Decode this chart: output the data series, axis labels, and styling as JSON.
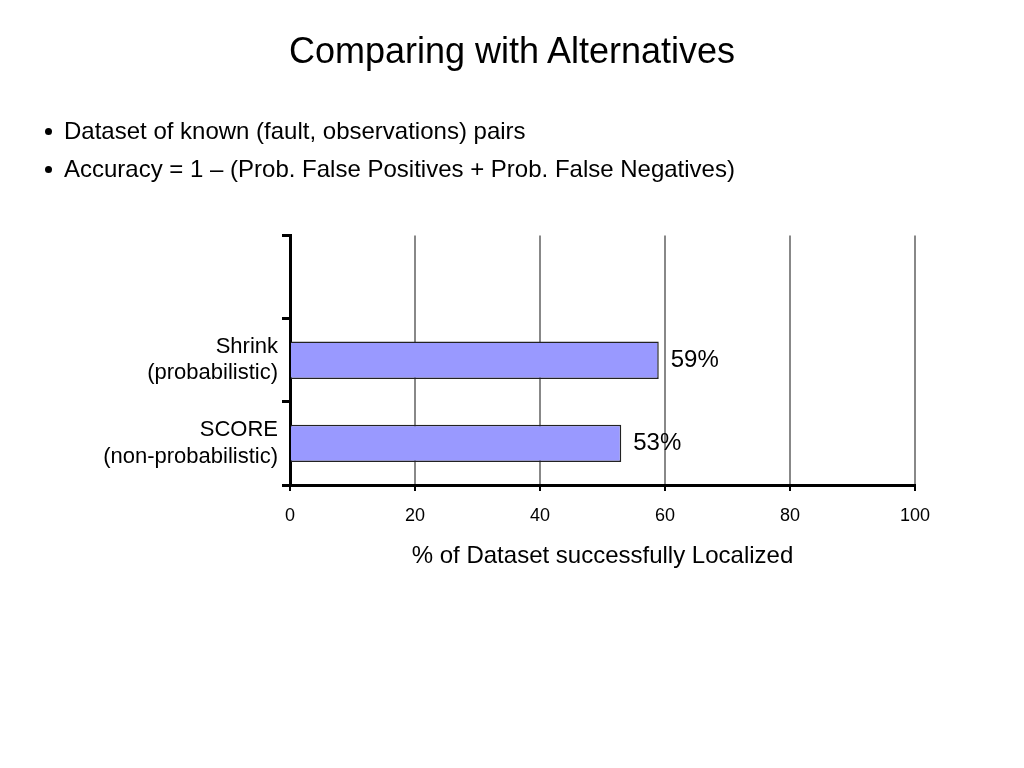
{
  "chart_data": {
    "type": "bar",
    "orientation": "horizontal",
    "title": "Comparing with Alternatives",
    "annotations": [
      "Dataset of known (fault, observations) pairs",
      "Accuracy = 1 – (Prob. False Positives + Prob. False Negatives)"
    ],
    "categories": [
      null,
      "Shrink\n(probabilistic)",
      "SCORE\n(non-probabilistic)"
    ],
    "values": [
      null,
      59,
      53
    ],
    "value_labels": [
      null,
      "59%",
      "53%"
    ],
    "color": "#9999ff",
    "xlabel": "% of Dataset successfully Localized",
    "xlim": [
      0,
      100
    ],
    "xticks": [
      0,
      20,
      40,
      60,
      80,
      100
    ],
    "grid": "x",
    "legend": false
  }
}
